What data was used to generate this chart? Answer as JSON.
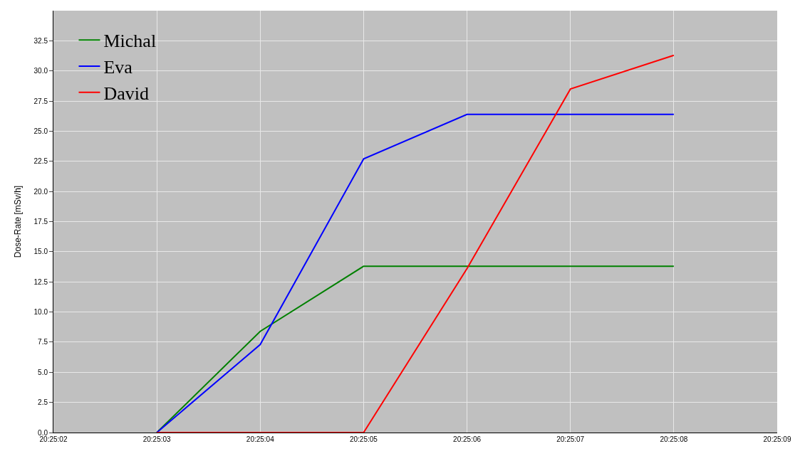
{
  "chart_data": {
    "type": "line",
    "ylabel": "Dose-Rate [mSv/h]",
    "categories": [
      "20:25:02",
      "20:25:03",
      "20:25:04",
      "20:25:05",
      "20:25:06",
      "20:25:07",
      "20:25:08",
      "20:25:09"
    ],
    "series": [
      {
        "name": "Michal",
        "color": "#008000",
        "values": [
          null,
          0,
          8.4,
          13.8,
          13.8,
          13.8,
          13.8,
          null
        ]
      },
      {
        "name": "Eva",
        "color": "#0000ff",
        "values": [
          null,
          0,
          7.3,
          22.7,
          26.4,
          26.4,
          26.4,
          null
        ]
      },
      {
        "name": "David",
        "color": "#ff0000",
        "values": [
          null,
          0,
          0,
          0,
          13.6,
          28.5,
          31.3,
          null
        ]
      }
    ],
    "ylim": [
      0,
      35
    ],
    "yticks": [
      {
        "value": 0,
        "label": "0.0"
      },
      2.5,
      {
        "value": 5,
        "label": "5.0"
      },
      7.5,
      {
        "value": 10,
        "label": "10.0"
      },
      12.5,
      {
        "value": 15,
        "label": "15.0"
      },
      17.5,
      {
        "value": 20,
        "label": "20.0"
      },
      22.5,
      {
        "value": 25,
        "label": "25.0"
      },
      27.5,
      {
        "value": 30,
        "label": "30.0"
      },
      32.5
    ],
    "grid": true,
    "legend": "top left",
    "line_style": "solid"
  }
}
